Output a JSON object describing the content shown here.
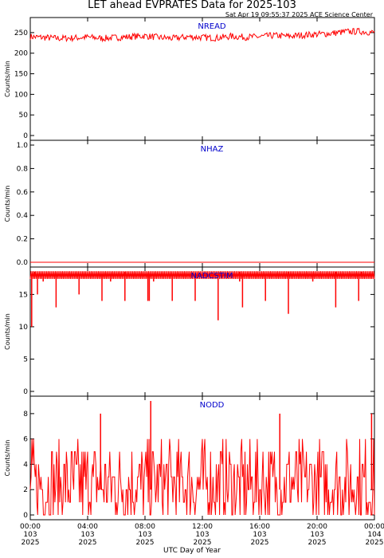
{
  "title": "LET ahead EVPRATES Data for 2025-103",
  "timestamp": "Sat Apr 19 09:55:37 2025 ACE Science Center",
  "xlabel": "UTC Day of Year",
  "colors": {
    "line": "#ff0000",
    "panel_label": "#0000cc",
    "axis": "#000000"
  },
  "x_ticks": [
    {
      "t": 0,
      "time": "00:00",
      "doy": "103",
      "year": "2025"
    },
    {
      "t": 4,
      "time": "04:00",
      "doy": "103",
      "year": "2025"
    },
    {
      "t": 8,
      "time": "08:00",
      "doy": "103",
      "year": "2025"
    },
    {
      "t": 12,
      "time": "12:00",
      "doy": "103",
      "year": "2025"
    },
    {
      "t": 16,
      "time": "16:00",
      "doy": "103",
      "year": "2025"
    },
    {
      "t": 20,
      "time": "20:00",
      "doy": "103",
      "year": "2025"
    },
    {
      "t": 24,
      "time": "00:00",
      "doy": "104",
      "year": "2025"
    }
  ],
  "chart_data": [
    {
      "type": "line",
      "title": "NREAD",
      "ylabel": "Counts/min",
      "ylim": [
        0,
        275
      ],
      "yticks": [
        0,
        50,
        100,
        150,
        200,
        250
      ],
      "series": [
        {
          "x": [
            0,
            1,
            2,
            3,
            4,
            5,
            6,
            7,
            8,
            9,
            10,
            11,
            12,
            13,
            14,
            15,
            16,
            17,
            18,
            19,
            20,
            21,
            22,
            23,
            24
          ],
          "values": [
            240,
            238,
            236,
            237,
            239,
            236,
            238,
            240,
            242,
            238,
            236,
            240,
            238,
            237,
            241,
            239,
            240,
            243,
            241,
            244,
            246,
            248,
            252,
            253,
            250
          ]
        }
      ]
    },
    {
      "type": "line",
      "title": "NHAZ",
      "ylabel": "Counts/min",
      "ylim": [
        0,
        1
      ],
      "yticks": [
        0.0,
        0.2,
        0.4,
        0.6,
        0.8,
        1.0
      ],
      "series": [
        {
          "x": [
            0,
            24
          ],
          "values": [
            0,
            0
          ]
        }
      ]
    },
    {
      "type": "line",
      "title": "NADCSTIM",
      "ylabel": "Counts/min",
      "ylim": [
        0,
        18.5
      ],
      "yticks": [
        0,
        5,
        10,
        15
      ],
      "series": [
        {
          "x": [
            0,
            24
          ],
          "values": [
            18,
            18
          ]
        }
      ],
      "dips": [
        {
          "t": 0.1,
          "value": 10
        },
        {
          "t": 0.5,
          "value": 15
        },
        {
          "t": 0.9,
          "value": 17
        },
        {
          "t": 1.8,
          "value": 13
        },
        {
          "t": 3.4,
          "value": 15
        },
        {
          "t": 5.0,
          "value": 14
        },
        {
          "t": 5.6,
          "value": 17
        },
        {
          "t": 6.6,
          "value": 14
        },
        {
          "t": 8.2,
          "value": 14
        },
        {
          "t": 8.3,
          "value": 14
        },
        {
          "t": 8.6,
          "value": 17
        },
        {
          "t": 9.9,
          "value": 14
        },
        {
          "t": 11.5,
          "value": 14
        },
        {
          "t": 13.1,
          "value": 11
        },
        {
          "t": 14.6,
          "value": 17
        },
        {
          "t": 14.8,
          "value": 13
        },
        {
          "t": 16.4,
          "value": 14
        },
        {
          "t": 18.0,
          "value": 12
        },
        {
          "t": 19.7,
          "value": 17
        },
        {
          "t": 21.3,
          "value": 13
        },
        {
          "t": 22.9,
          "value": 14
        }
      ],
      "spikes": [
        0.3,
        6.6,
        14.6,
        18.0,
        21.3,
        23.1
      ]
    },
    {
      "type": "line",
      "title": "NODD",
      "ylabel": "Counts/min",
      "ylim": [
        0,
        9
      ],
      "yticks": [
        0,
        2,
        4,
        6,
        8
      ],
      "series": [
        {
          "x": [
            0,
            1,
            2,
            3,
            4,
            5,
            6,
            7,
            8,
            9,
            10,
            11,
            12,
            13,
            14,
            15,
            16,
            17,
            18,
            19,
            20,
            21,
            22,
            23,
            24
          ],
          "values": [
            2,
            2,
            2,
            2,
            2,
            2,
            2,
            2,
            2,
            2,
            2,
            2,
            2,
            2,
            2,
            2,
            2,
            2,
            2,
            2,
            2,
            2,
            2,
            2,
            2
          ]
        }
      ],
      "noise_range": [
        0,
        6
      ],
      "spikes": [
        {
          "t": 4.9,
          "value": 8
        },
        {
          "t": 8.4,
          "value": 9
        },
        {
          "t": 17.4,
          "value": 8
        },
        {
          "t": 23.8,
          "value": 8
        }
      ]
    }
  ]
}
